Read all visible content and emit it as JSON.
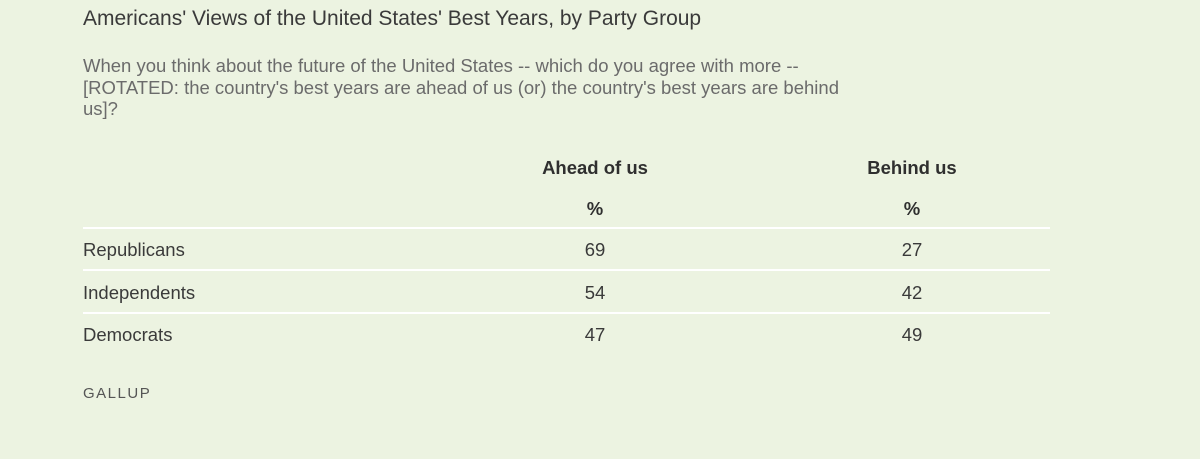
{
  "title": "Americans' Views of the United States' Best Years, by Party Group",
  "question": "When you think about the future of the United States -- which do you agree with more -- [ROTATED: the country's best years are ahead of us (or) the country's best years are behind us]?",
  "source": "GALLUP",
  "chart_data": {
    "type": "table",
    "columns": [
      {
        "label": "Ahead of us",
        "unit": "%"
      },
      {
        "label": "Behind us",
        "unit": "%"
      }
    ],
    "rows": [
      {
        "label": "Republicans",
        "values": [
          "69",
          "27"
        ]
      },
      {
        "label": "Independents",
        "values": [
          "54",
          "42"
        ]
      },
      {
        "label": "Democrats",
        "values": [
          "47",
          "49"
        ]
      }
    ]
  }
}
